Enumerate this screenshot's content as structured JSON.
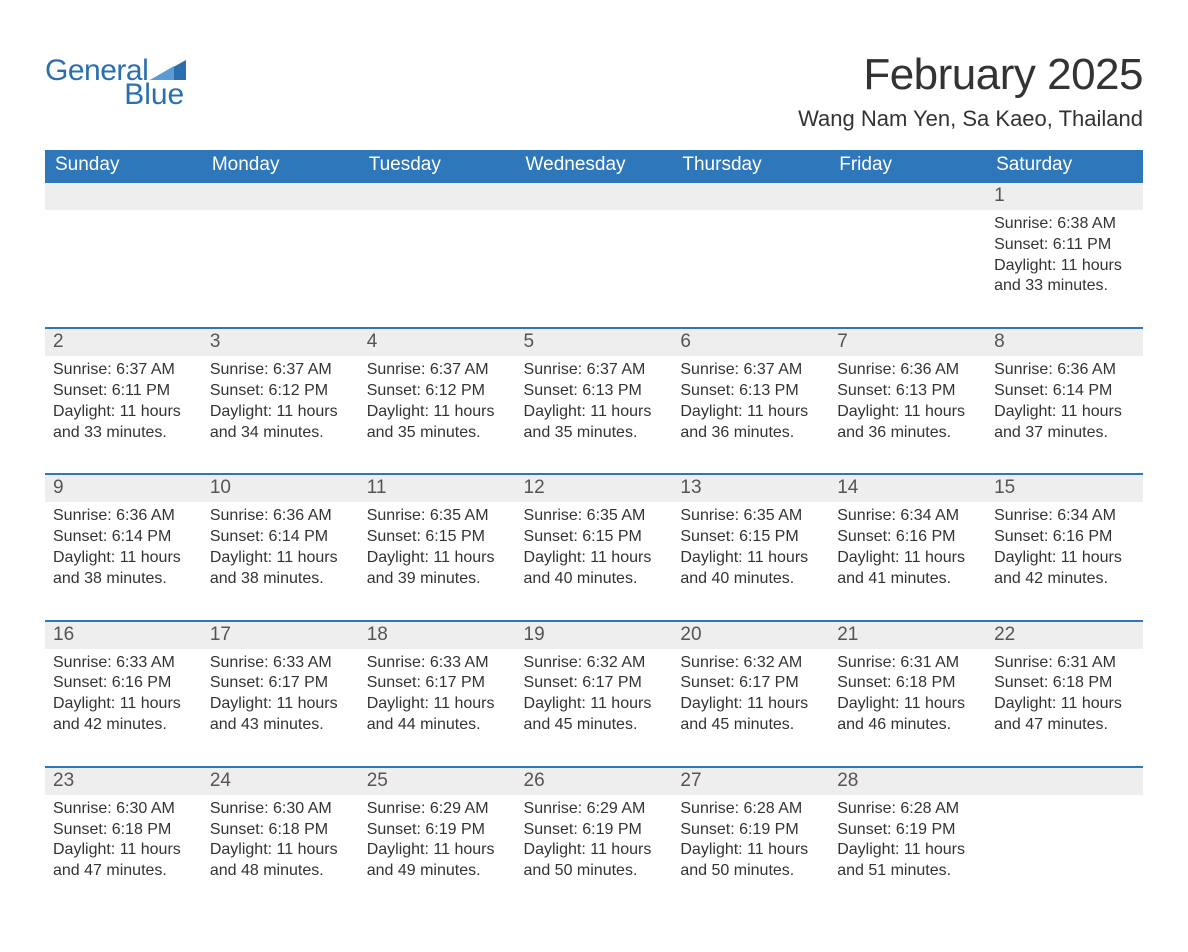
{
  "branding": {
    "logo_word_1": "General",
    "logo_word_2": "Blue",
    "logo_color": "#2b6fb0"
  },
  "title": {
    "month_year": "February 2025",
    "location": "Wang Nam Yen, Sa Kaeo, Thailand"
  },
  "styling": {
    "header_bg": "#2f77bb",
    "header_text": "#ffffff",
    "daynum_bg": "#eeeeee",
    "daynum_text": "#555555",
    "body_text": "#333333",
    "row_border": "#2f77bb",
    "page_bg": "#ffffff",
    "title_fontsize": 44,
    "location_fontsize": 22,
    "dow_fontsize": 19,
    "daynum_fontsize": 19,
    "body_fontsize": 16
  },
  "days_of_week": [
    "Sunday",
    "Monday",
    "Tuesday",
    "Wednesday",
    "Thursday",
    "Friday",
    "Saturday"
  ],
  "labels": {
    "sunrise_prefix": "Sunrise: ",
    "sunset_prefix": "Sunset: ",
    "daylight_prefix": "Daylight: "
  },
  "weeks": [
    [
      {
        "empty": true
      },
      {
        "empty": true
      },
      {
        "empty": true
      },
      {
        "empty": true
      },
      {
        "empty": true
      },
      {
        "empty": true
      },
      {
        "num": "1",
        "sunrise": "6:38 AM",
        "sunset": "6:11 PM",
        "daylight": "11 hours and 33 minutes."
      }
    ],
    [
      {
        "num": "2",
        "sunrise": "6:37 AM",
        "sunset": "6:11 PM",
        "daylight": "11 hours and 33 minutes."
      },
      {
        "num": "3",
        "sunrise": "6:37 AM",
        "sunset": "6:12 PM",
        "daylight": "11 hours and 34 minutes."
      },
      {
        "num": "4",
        "sunrise": "6:37 AM",
        "sunset": "6:12 PM",
        "daylight": "11 hours and 35 minutes."
      },
      {
        "num": "5",
        "sunrise": "6:37 AM",
        "sunset": "6:13 PM",
        "daylight": "11 hours and 35 minutes."
      },
      {
        "num": "6",
        "sunrise": "6:37 AM",
        "sunset": "6:13 PM",
        "daylight": "11 hours and 36 minutes."
      },
      {
        "num": "7",
        "sunrise": "6:36 AM",
        "sunset": "6:13 PM",
        "daylight": "11 hours and 36 minutes."
      },
      {
        "num": "8",
        "sunrise": "6:36 AM",
        "sunset": "6:14 PM",
        "daylight": "11 hours and 37 minutes."
      }
    ],
    [
      {
        "num": "9",
        "sunrise": "6:36 AM",
        "sunset": "6:14 PM",
        "daylight": "11 hours and 38 minutes."
      },
      {
        "num": "10",
        "sunrise": "6:36 AM",
        "sunset": "6:14 PM",
        "daylight": "11 hours and 38 minutes."
      },
      {
        "num": "11",
        "sunrise": "6:35 AM",
        "sunset": "6:15 PM",
        "daylight": "11 hours and 39 minutes."
      },
      {
        "num": "12",
        "sunrise": "6:35 AM",
        "sunset": "6:15 PM",
        "daylight": "11 hours and 40 minutes."
      },
      {
        "num": "13",
        "sunrise": "6:35 AM",
        "sunset": "6:15 PM",
        "daylight": "11 hours and 40 minutes."
      },
      {
        "num": "14",
        "sunrise": "6:34 AM",
        "sunset": "6:16 PM",
        "daylight": "11 hours and 41 minutes."
      },
      {
        "num": "15",
        "sunrise": "6:34 AM",
        "sunset": "6:16 PM",
        "daylight": "11 hours and 42 minutes."
      }
    ],
    [
      {
        "num": "16",
        "sunrise": "6:33 AM",
        "sunset": "6:16 PM",
        "daylight": "11 hours and 42 minutes."
      },
      {
        "num": "17",
        "sunrise": "6:33 AM",
        "sunset": "6:17 PM",
        "daylight": "11 hours and 43 minutes."
      },
      {
        "num": "18",
        "sunrise": "6:33 AM",
        "sunset": "6:17 PM",
        "daylight": "11 hours and 44 minutes."
      },
      {
        "num": "19",
        "sunrise": "6:32 AM",
        "sunset": "6:17 PM",
        "daylight": "11 hours and 45 minutes."
      },
      {
        "num": "20",
        "sunrise": "6:32 AM",
        "sunset": "6:17 PM",
        "daylight": "11 hours and 45 minutes."
      },
      {
        "num": "21",
        "sunrise": "6:31 AM",
        "sunset": "6:18 PM",
        "daylight": "11 hours and 46 minutes."
      },
      {
        "num": "22",
        "sunrise": "6:31 AM",
        "sunset": "6:18 PM",
        "daylight": "11 hours and 47 minutes."
      }
    ],
    [
      {
        "num": "23",
        "sunrise": "6:30 AM",
        "sunset": "6:18 PM",
        "daylight": "11 hours and 47 minutes."
      },
      {
        "num": "24",
        "sunrise": "6:30 AM",
        "sunset": "6:18 PM",
        "daylight": "11 hours and 48 minutes."
      },
      {
        "num": "25",
        "sunrise": "6:29 AM",
        "sunset": "6:19 PM",
        "daylight": "11 hours and 49 minutes."
      },
      {
        "num": "26",
        "sunrise": "6:29 AM",
        "sunset": "6:19 PM",
        "daylight": "11 hours and 50 minutes."
      },
      {
        "num": "27",
        "sunrise": "6:28 AM",
        "sunset": "6:19 PM",
        "daylight": "11 hours and 50 minutes."
      },
      {
        "num": "28",
        "sunrise": "6:28 AM",
        "sunset": "6:19 PM",
        "daylight": "11 hours and 51 minutes."
      },
      {
        "empty": true
      }
    ]
  ]
}
